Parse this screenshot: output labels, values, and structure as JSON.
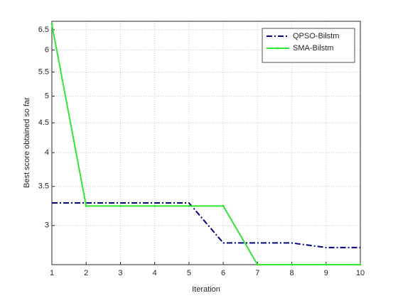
{
  "chart_data": {
    "type": "line",
    "x_label": "Iteration",
    "y_label": "Best score obtained so far",
    "x": [
      1,
      2,
      3,
      4,
      5,
      6,
      7,
      8,
      9,
      10
    ],
    "series": [
      {
        "name": "QPSO-Bilstm",
        "color": "#000080",
        "values": [
          3.28,
          3.28,
          3.28,
          3.28,
          3.28,
          2.8,
          2.8,
          2.8,
          2.75,
          2.75
        ]
      },
      {
        "name": "SMA-Bilstm",
        "color": "#33e633",
        "values": [
          6.64,
          3.24,
          3.24,
          3.24,
          3.24,
          3.24,
          2.57,
          2.57,
          2.57,
          2.57
        ]
      }
    ],
    "xlim": [
      1,
      10
    ],
    "xticks": [
      1,
      2,
      3,
      4,
      5,
      6,
      7,
      8,
      9,
      10
    ],
    "ylim": [
      2.57,
      6.72
    ],
    "yticks": [
      3,
      3.5,
      4,
      4.5,
      5,
      5.5,
      6,
      6.5
    ],
    "y_log": true,
    "grid": true,
    "legend": "northeast"
  }
}
